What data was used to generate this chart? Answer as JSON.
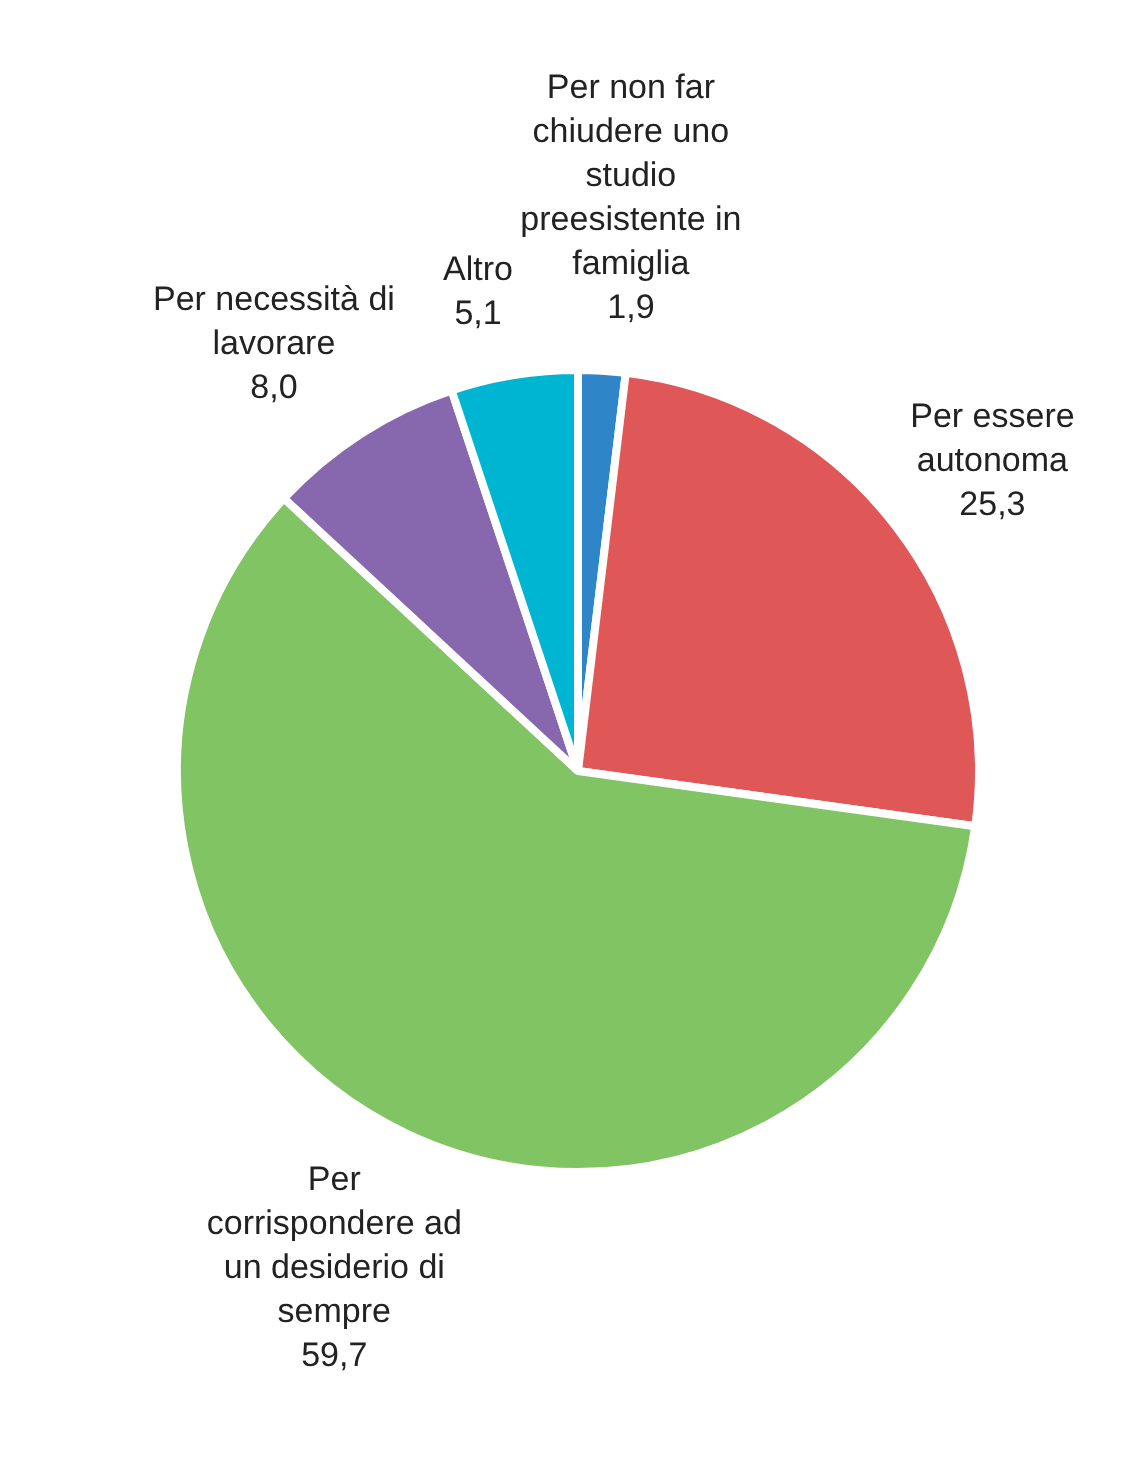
{
  "chart_data": {
    "type": "pie",
    "categories": [
      "Per non far chiudere uno studio preesistente in famiglia",
      "Per essere autonoma",
      "Per corrispondere ad un desiderio di sempre",
      "Per necessità di lavorare",
      "Altro"
    ],
    "values": [
      1.9,
      25.3,
      59.7,
      8.0,
      5.1
    ],
    "value_labels": [
      "1,9",
      "25,3",
      "59,7",
      "8,0",
      "5,1"
    ],
    "colors": [
      "#2e86c8",
      "#e05757",
      "#80c463",
      "#8768ae",
      "#00b5d1"
    ],
    "legend": false
  }
}
